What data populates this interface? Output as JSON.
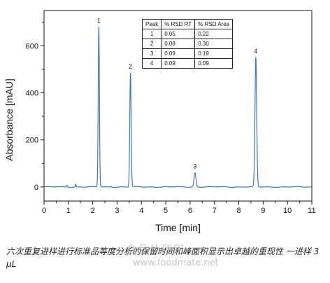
{
  "chart_data": {
    "type": "line",
    "xlabel": "Time [min]",
    "ylabel": "Absorbance [mAU]",
    "xlim": [
      0,
      11
    ],
    "ylim": [
      -60,
      750
    ],
    "x_ticks": [
      0,
      1,
      2,
      3,
      4,
      5,
      6,
      7,
      8,
      9,
      10,
      11
    ],
    "y_ticks": [
      0,
      200,
      400,
      600
    ],
    "grid": false,
    "series": [
      {
        "color": "#3a78c8",
        "peaks": [
          {
            "label": "1",
            "time": 2.25,
            "height": 680,
            "width": 0.025
          },
          {
            "label": "2",
            "time": 3.55,
            "height": 485,
            "width": 0.028
          },
          {
            "label": "3",
            "time": 6.2,
            "height": 60,
            "width": 0.04
          },
          {
            "label": "4",
            "time": 8.7,
            "height": 550,
            "width": 0.035
          }
        ],
        "minor_peaks": [
          {
            "time": 0.95,
            "height": 8,
            "width": 0.02
          },
          {
            "time": 1.3,
            "height": 12,
            "width": 0.015
          },
          {
            "time": 2.75,
            "height": 4,
            "width": 0.02
          }
        ]
      }
    ]
  },
  "table": {
    "headers": [
      "Peak",
      "% RSD RT",
      "% RSD Area"
    ],
    "rows": [
      [
        "1",
        "0.05",
        "0.22"
      ],
      [
        "2",
        "0.08",
        "0.30"
      ],
      [
        "3",
        "0.09",
        "0.19"
      ],
      [
        "4",
        "0.09",
        "0.09"
      ]
    ]
  },
  "caption": "六次重复进样进行标准品等度分析的保留时间和峰面积显示出卓越的重现性 一进样 3 μL",
  "watermark": {
    "name": "食品伙伴网",
    "url": "www.foodmate.net"
  }
}
